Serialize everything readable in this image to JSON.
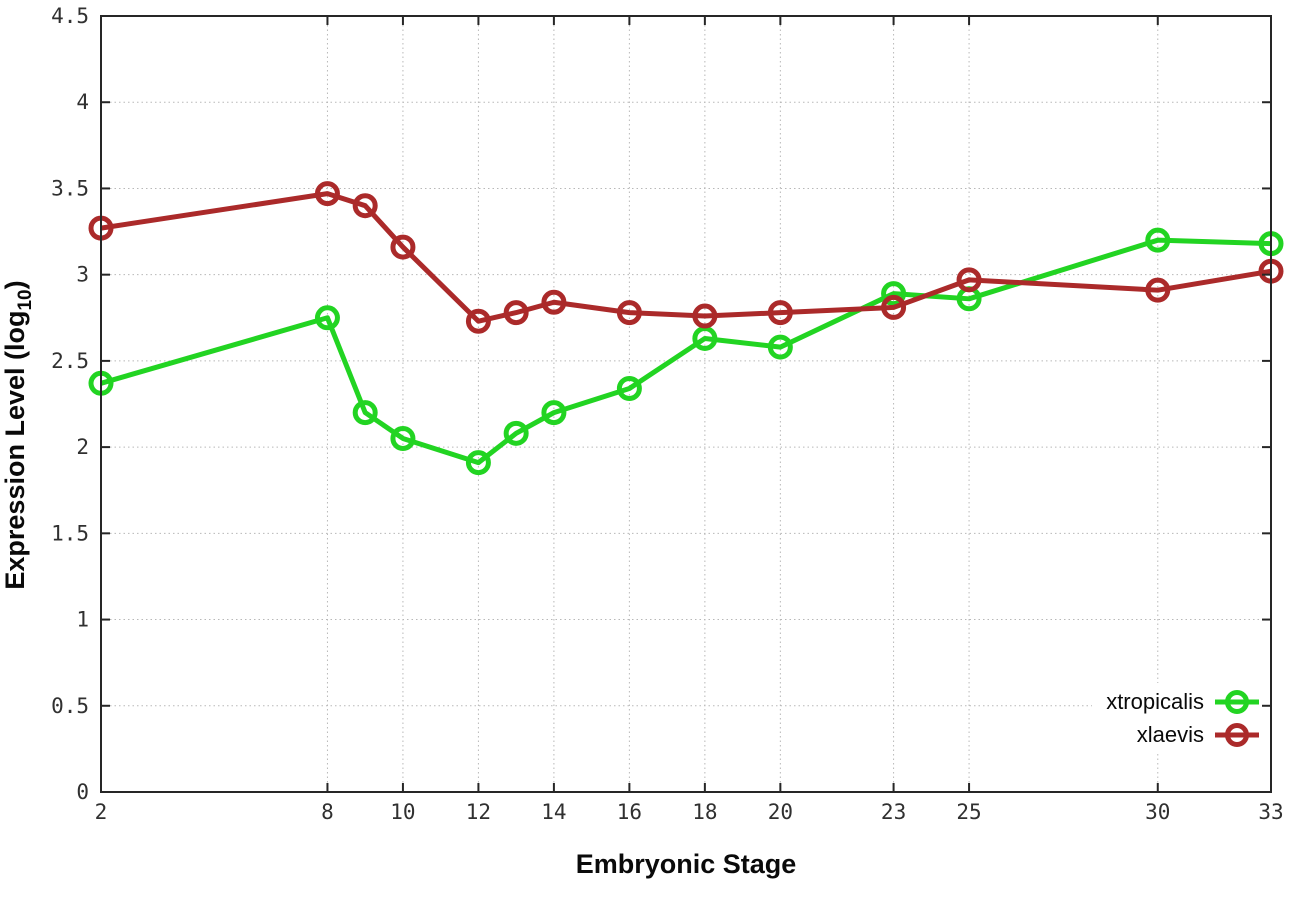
{
  "figure": {
    "background_color": "#ffffff",
    "border_color": "#262626",
    "grid_color": "#b8b8b8",
    "tick_label_color": "#303030",
    "x_axis": {
      "title": "Embryonic Stage",
      "tick_labels": [
        "2",
        "8",
        "10",
        "12",
        "14",
        "16",
        "18",
        "20",
        "23",
        "25",
        "30",
        "33"
      ]
    },
    "y_axis": {
      "title_main": "Expression Level (log",
      "title_sub": "10",
      "title_close": ")",
      "tick_labels": [
        "0",
        "0.5",
        "1",
        "1.5",
        "2",
        "2.5",
        "3",
        "3.5",
        "4",
        "4.5"
      ]
    },
    "legend": {
      "items": [
        {
          "label": "xtropicalis",
          "color": "#22d422"
        },
        {
          "label": "xlaevis",
          "color": "#ab2a2a"
        }
      ]
    }
  },
  "chart_data": {
    "type": "line",
    "x": [
      2,
      8,
      9,
      10,
      12,
      13,
      14,
      16,
      18,
      20,
      23,
      25,
      30,
      33
    ],
    "series": [
      {
        "name": "xtropicalis",
        "color": "#22d422",
        "values": [
          2.37,
          2.75,
          2.2,
          2.05,
          1.91,
          2.08,
          2.2,
          2.34,
          2.63,
          2.58,
          2.89,
          2.86,
          3.2,
          3.18
        ]
      },
      {
        "name": "xlaevis",
        "color": "#ab2a2a",
        "values": [
          3.27,
          3.47,
          3.4,
          3.16,
          2.73,
          2.78,
          2.84,
          2.78,
          2.76,
          2.78,
          2.81,
          2.97,
          2.91,
          3.02
        ]
      }
    ],
    "title": "",
    "xlabel": "Embryonic Stage",
    "ylabel": "Expression Level (log10)",
    "xlim": [
      2,
      33
    ],
    "ylim": [
      0,
      4.5
    ],
    "x_ticks": [
      2,
      8,
      10,
      12,
      14,
      16,
      18,
      20,
      23,
      25,
      30,
      33
    ],
    "y_ticks": [
      0,
      0.5,
      1,
      1.5,
      2,
      2.5,
      3,
      3.5,
      4,
      4.5
    ],
    "grid": true,
    "grid_style": "dotted",
    "marker": "open-circle",
    "legend_position": "bottom-right"
  }
}
